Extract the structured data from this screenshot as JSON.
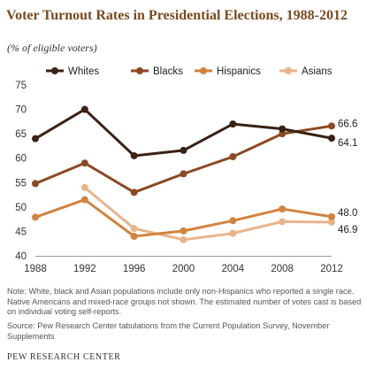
{
  "header": {
    "title": "Voter Turnout Rates in Presidential Elections, 1988-2012",
    "subtitle": "(% of eligible voters)"
  },
  "footnotes": {
    "note": "Note: White, black and Asian populations include only non-Hispanics who reported a single race. Native Americans and mixed-race groups not shown. The estimated number of votes cast is based on individual voting self-reports.",
    "source": "Source: Pew Research Center tabulations from the Current Population Survey, November Supplements",
    "credit": "PEW RESEARCH CENTER"
  },
  "chart_data": {
    "type": "line",
    "title": "Voter Turnout Rates in Presidential Elections, 1988-2012",
    "subtitle": "(% of eligible voters)",
    "xlabel": "",
    "ylabel": "",
    "x": [
      1988,
      1992,
      1996,
      2000,
      2004,
      2008,
      2012
    ],
    "ylim": [
      40,
      75
    ],
    "yticks": [
      40,
      45,
      50,
      55,
      60,
      65,
      70,
      75
    ],
    "grid": false,
    "legend_position": "top",
    "series": [
      {
        "name": "Whites",
        "color": "#3a2214",
        "values": [
          64.0,
          70.0,
          60.5,
          61.6,
          67.0,
          66.0,
          64.1
        ],
        "end_label": "64.1"
      },
      {
        "name": "Blacks",
        "color": "#8b4a22",
        "values": [
          54.8,
          59.0,
          53.0,
          56.8,
          60.3,
          65.0,
          66.6
        ],
        "end_label": "66.6"
      },
      {
        "name": "Hispanics",
        "color": "#d2833e",
        "values": [
          47.9,
          51.5,
          44.0,
          45.1,
          47.2,
          49.6,
          48.0
        ],
        "end_label": "48.0"
      },
      {
        "name": "Asians",
        "color": "#e8b48c",
        "values": [
          null,
          54.0,
          45.6,
          43.3,
          44.6,
          47.0,
          46.9
        ],
        "end_label": "46.9"
      }
    ]
  }
}
